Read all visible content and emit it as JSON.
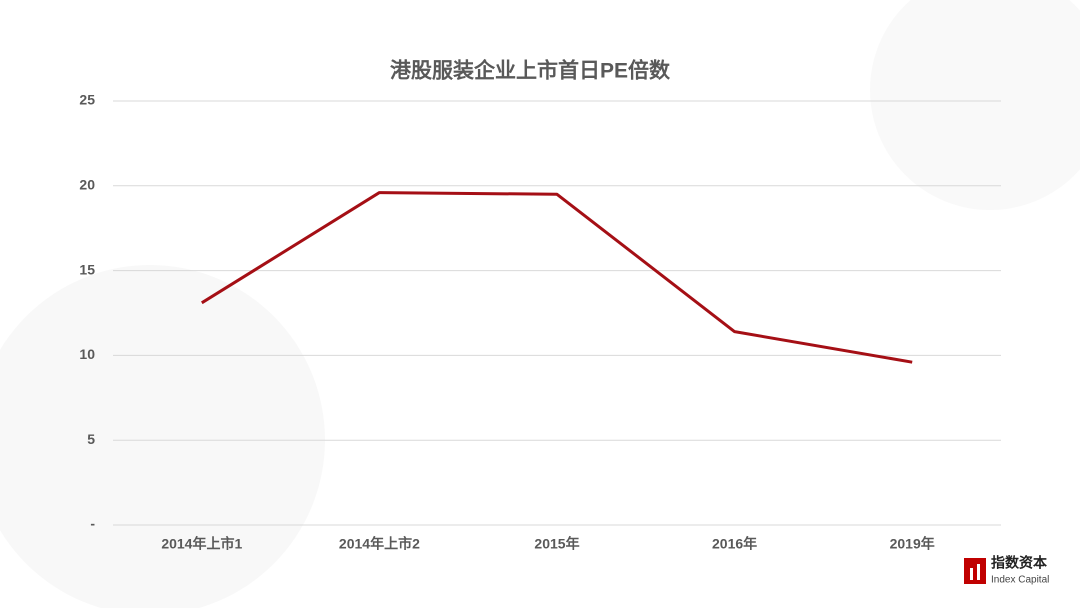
{
  "chart_data": {
    "type": "line",
    "title": "港股服装企业上市首日PE倍数",
    "categories": [
      "2014年上市1",
      "2014年上市2",
      "2015年",
      "2016年",
      "2019年"
    ],
    "values": [
      13.1,
      19.6,
      19.5,
      11.4,
      9.6
    ],
    "color": "#a50f15",
    "ylim": [
      0,
      25
    ],
    "yticks": [
      {
        "value": 0,
        "label": "-"
      },
      5,
      10,
      15,
      20,
      25
    ],
    "grid": true
  },
  "logo": {
    "name": "指数资本",
    "subtitle": "Index Capital"
  }
}
